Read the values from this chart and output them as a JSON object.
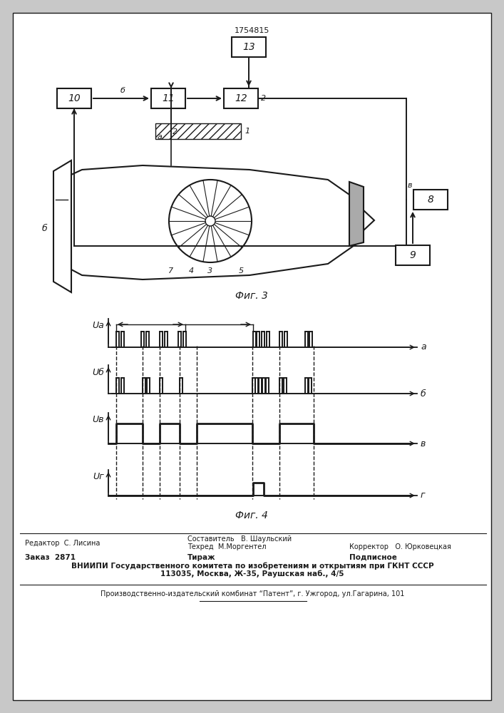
{
  "patent_number": "1754815",
  "fig3_label": "Фиг. 3",
  "fig4_label": "Фиг. 4",
  "bg_color": "#c8c8c8",
  "line_color": "#1a1a1a",
  "footer_line1_left": "Редактор  С. Лисина",
  "footer_line1_center": "Составитель   В. Шаульский",
  "footer_line2_center": "Техред  М.Моргентел",
  "footer_line2_right": "Корректор   О. Юрковецкая",
  "footer_line3_left": "Заказ  2871",
  "footer_line3_center": "Тираж",
  "footer_line3_right": "Подписное",
  "footer_line4": "ВНИИПИ Государственного комитета по изобретениям и открытиям при ГКНТ СССР",
  "footer_line5": "113035, Москва, Ж-35, Раушская наб., 4/5",
  "footer_line6": "Производственно-издательский комбинат “Патент”, г. Ужгород, ул.Гагарина, 101"
}
